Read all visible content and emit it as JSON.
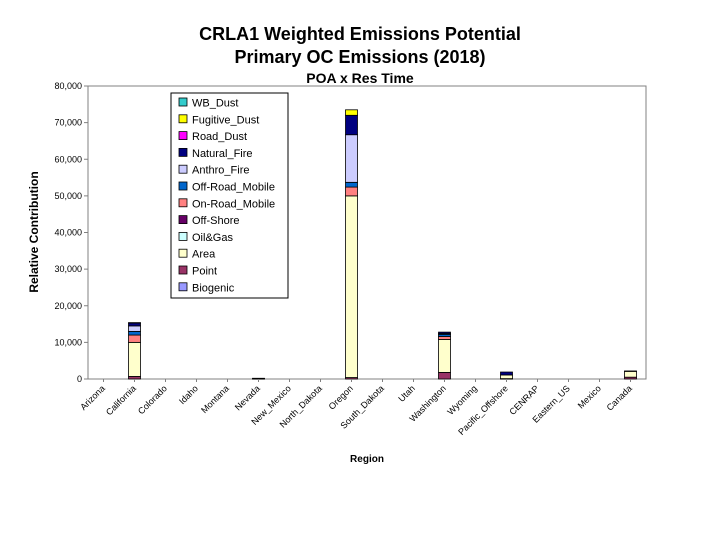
{
  "chart_data": {
    "type": "bar",
    "stacked": true,
    "title": "CRLA1 Weighted Emissions Potential",
    "subtitle": "Primary OC Emissions (2018)",
    "subtitle2": "POA x Res Time",
    "xlabel": "Region",
    "ylabel": "Relative Contribution",
    "ylim": [
      0,
      80000
    ],
    "yticks": [
      0,
      10000,
      20000,
      30000,
      40000,
      50000,
      60000,
      70000,
      80000
    ],
    "ytick_labels": [
      "0",
      "10,000",
      "20,000",
      "30,000",
      "40,000",
      "50,000",
      "60,000",
      "70,000",
      "80,000"
    ],
    "grid": false,
    "legend_position": "top-left",
    "categories": [
      "Arizona",
      "California",
      "Colorado",
      "Idaho",
      "Montana",
      "Nevada",
      "New_Mexico",
      "North_Dakota",
      "Oregon",
      "South_Dakota",
      "Utah",
      "Washington",
      "Wyoming",
      "Pacific_Offshore",
      "CENRAP",
      "Eastern_US",
      "Mexico",
      "Canada"
    ],
    "series": [
      {
        "name": "Biogenic",
        "color": "#9999ff",
        "values": [
          0,
          0,
          0,
          0,
          0,
          0,
          0,
          0,
          0,
          0,
          0,
          0,
          0,
          0,
          0,
          0,
          0,
          0
        ]
      },
      {
        "name": "Point",
        "color": "#993366",
        "values": [
          0,
          700,
          0,
          0,
          0,
          100,
          0,
          0,
          400,
          0,
          0,
          1800,
          0,
          100,
          0,
          0,
          0,
          500
        ]
      },
      {
        "name": "Area",
        "color": "#ffffcc",
        "values": [
          0,
          9300,
          0,
          0,
          0,
          100,
          0,
          0,
          49600,
          0,
          0,
          9000,
          0,
          1000,
          0,
          0,
          0,
          1600
        ]
      },
      {
        "name": "Oil&Gas",
        "color": "#ccffff",
        "values": [
          0,
          0,
          0,
          0,
          0,
          0,
          0,
          0,
          0,
          0,
          0,
          0,
          0,
          0,
          0,
          0,
          0,
          0
        ]
      },
      {
        "name": "Off-Shore",
        "color": "#660066",
        "values": [
          0,
          0,
          0,
          0,
          0,
          0,
          0,
          0,
          0,
          0,
          0,
          0,
          0,
          0,
          0,
          0,
          0,
          0
        ]
      },
      {
        "name": "On-Road_Mobile",
        "color": "#ff8080",
        "values": [
          0,
          2000,
          0,
          0,
          0,
          0,
          0,
          0,
          2400,
          0,
          0,
          800,
          0,
          0,
          0,
          0,
          0,
          100
        ]
      },
      {
        "name": "Off-Road_Mobile",
        "color": "#0066cc",
        "values": [
          0,
          1000,
          0,
          0,
          0,
          0,
          0,
          0,
          1300,
          0,
          0,
          600,
          0,
          0,
          0,
          0,
          0,
          0
        ]
      },
      {
        "name": "Anthro_Fire",
        "color": "#ccccff",
        "values": [
          0,
          1500,
          0,
          0,
          0,
          0,
          0,
          0,
          13000,
          0,
          0,
          200,
          0,
          0,
          0,
          0,
          0,
          0
        ]
      },
      {
        "name": "Natural_Fire",
        "color": "#000080",
        "values": [
          0,
          800,
          0,
          0,
          0,
          0,
          0,
          0,
          5300,
          0,
          0,
          400,
          0,
          800,
          0,
          0,
          0,
          0
        ]
      },
      {
        "name": "Road_Dust",
        "color": "#ff00ff",
        "values": [
          0,
          0,
          0,
          0,
          0,
          0,
          0,
          0,
          0,
          0,
          0,
          0,
          0,
          0,
          0,
          0,
          0,
          0
        ]
      },
      {
        "name": "Fugitive_Dust",
        "color": "#ffff00",
        "values": [
          0,
          100,
          0,
          0,
          0,
          0,
          0,
          0,
          1500,
          0,
          0,
          0,
          0,
          0,
          0,
          0,
          0,
          0
        ]
      },
      {
        "name": "WB_Dust",
        "color": "#33cccc",
        "values": [
          0,
          0,
          0,
          0,
          0,
          0,
          0,
          0,
          0,
          0,
          0,
          0,
          0,
          0,
          0,
          0,
          0,
          0
        ]
      }
    ],
    "legend_order": [
      "WB_Dust",
      "Fugitive_Dust",
      "Road_Dust",
      "Natural_Fire",
      "Anthro_Fire",
      "Off-Road_Mobile",
      "On-Road_Mobile",
      "Off-Shore",
      "Oil&Gas",
      "Area",
      "Point",
      "Biogenic"
    ]
  }
}
